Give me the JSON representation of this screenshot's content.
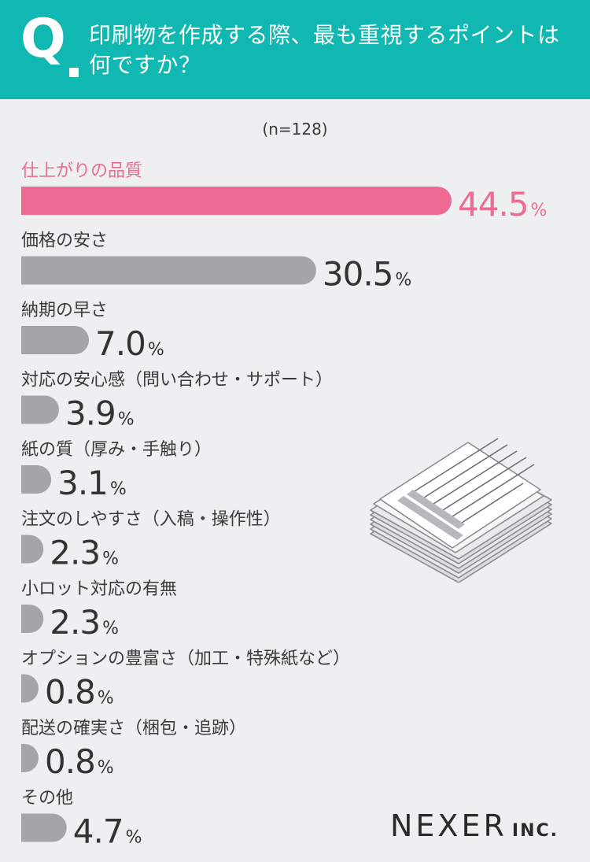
{
  "question": {
    "mark": "Q",
    "text": "印刷物を作成する際、最も重視するポイントは何ですか？"
  },
  "sample_size": "(n=128)",
  "logo": {
    "main": "NEXER",
    "sub": "INC."
  },
  "colors": {
    "header": "#10b8b1",
    "highlight": "#ed6b93",
    "bar_default": "#a3a5a8",
    "background": "#eeeff0"
  },
  "icons": [
    "paper-stack-icon"
  ],
  "chart_data": {
    "type": "bar",
    "orientation": "horizontal",
    "unit": "%",
    "categories": [
      "仕上がりの品質",
      "価格の安さ",
      "納期の早さ",
      "対応の安心感（問い合わせ・サポート）",
      "紙の質（厚み・手触り）",
      "注文のしやすさ（入稿・操作性）",
      "小ロット対応の有無",
      "オプションの豊富さ（加工・特殊紙など）",
      "配送の確実さ（梱包・追跡）",
      "その他"
    ],
    "values": [
      44.5,
      30.5,
      7.0,
      3.9,
      3.1,
      2.3,
      2.3,
      0.8,
      0.8,
      4.7
    ],
    "value_labels": [
      "44.5",
      "30.5",
      "7.0",
      "3.9",
      "3.1",
      "2.3",
      "2.3",
      "0.8",
      "0.8",
      "4.7"
    ],
    "highlight_index": 0,
    "xlim": [
      0,
      44.5
    ],
    "grid": false,
    "legend": "none"
  }
}
